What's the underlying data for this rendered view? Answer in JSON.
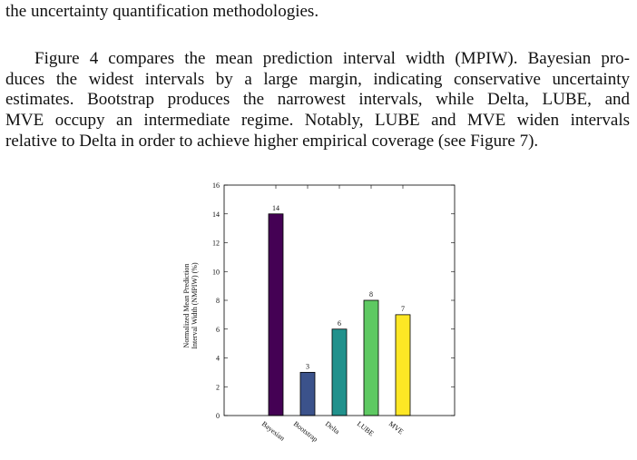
{
  "paragraphs": [
    {
      "lines": [
        "the uncertainty quantification methodologies."
      ]
    },
    {
      "lines": [
        "Figure 4 compares the mean prediction interval width (MPIW). Bayesian pro-",
        "duces the widest intervals by a large margin, indicating conservative uncertainty",
        "estimates. Bootstrap produces the narrowest intervals, while Delta, LUBE, and",
        "MVE occupy an intermediate regime. Notably, LUBE and MVE widen intervals",
        "relative to Delta in order to achieve higher empirical coverage (see Figure 7)."
      ]
    }
  ],
  "chart_data": {
    "type": "bar",
    "ylabel": [
      "Normalized Mean Prediction",
      "Interval Width (NMPIW) (%)"
    ],
    "categories": [
      "Bayesian",
      "Bootstrap",
      "Delta",
      "LUBE",
      "MVE"
    ],
    "values": [
      14,
      3,
      6,
      8,
      7
    ],
    "colors": [
      "#440154",
      "#3b528b",
      "#21918c",
      "#5ec962",
      "#fde725"
    ],
    "ylim": [
      0,
      16
    ],
    "yticks": [
      0,
      2,
      4,
      6,
      8,
      10,
      12,
      14,
      16
    ]
  }
}
